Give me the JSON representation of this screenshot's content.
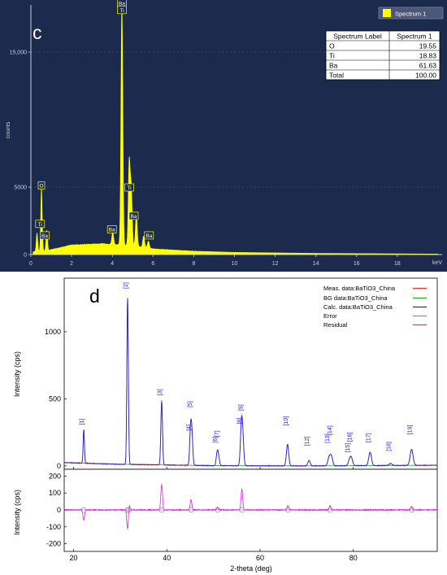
{
  "panel_c": {
    "letter": "c",
    "legend_label": "Spectrum 1",
    "ylabel": "counts",
    "xunit": "keV",
    "table": {
      "headers": [
        "Spectrum Label",
        "Spectrum 1"
      ],
      "rows": [
        [
          "O",
          "19.55"
        ],
        [
          "Ti",
          "18.83"
        ],
        [
          "Ba",
          "61.63"
        ],
        [
          "Total",
          "100.00"
        ]
      ]
    },
    "colors": {
      "background": "#1c2b4d",
      "spectrum": "#ffff00",
      "axis": "#c8cede"
    }
  },
  "panel_d": {
    "letter": "d",
    "xlabel": "2-theta (deg)",
    "ylabel_top": "Intensity (cps)",
    "ylabel_bottom": "Intensity (cps)",
    "legend": [
      {
        "label": "Meas. data:BaTiO3_China",
        "color": "#e8382e"
      },
      {
        "label": "BG data:BaTiO3_China",
        "color": "#2ea02e"
      },
      {
        "label": "Calc. data:BaTiO3_China",
        "color": "#2424d8"
      },
      {
        "label": "Error",
        "color": "#909090"
      },
      {
        "label": "Residual",
        "color": "#e020e0"
      }
    ]
  },
  "chart_data": [
    {
      "type": "area",
      "xlim": [
        0,
        20
      ],
      "ylim": [
        0,
        18500
      ],
      "xticks": [
        0,
        2,
        4,
        6,
        8,
        10,
        12,
        14,
        16,
        18
      ],
      "yticks": [
        0,
        5000,
        15000
      ],
      "ytick_labels": [
        "0",
        "5000",
        "15,000"
      ],
      "xlabel": "keV",
      "ylabel": "counts",
      "series": [
        {
          "name": "Spectrum 1",
          "color": "#ffff00"
        }
      ],
      "peaks": [
        {
          "x": 0.3,
          "y": 1350
        },
        {
          "x": 0.52,
          "y": 4700
        },
        {
          "x": 0.78,
          "y": 1500
        },
        {
          "x": 4.02,
          "y": 900
        },
        {
          "x": 4.47,
          "y": 17900
        },
        {
          "x": 4.83,
          "y": 6200
        },
        {
          "x": 4.93,
          "y": 4100
        },
        {
          "x": 5.18,
          "y": 2300
        },
        {
          "x": 5.54,
          "y": 850
        },
        {
          "x": 5.77,
          "y": 520
        }
      ],
      "continuum": [
        [
          0.85,
          320
        ],
        [
          2,
          700
        ],
        [
          3.5,
          800
        ],
        [
          5,
          650
        ],
        [
          6,
          420
        ],
        [
          8,
          250
        ],
        [
          10,
          160
        ],
        [
          14,
          90
        ],
        [
          20,
          40
        ]
      ],
      "peak_labels": [
        {
          "text": "Ba",
          "x": 4.47,
          "y": 18350
        },
        {
          "text": "Ti",
          "x": 4.47,
          "y": 17850
        },
        {
          "text": "O",
          "x": 0.52,
          "y": 4850
        },
        {
          "text": "Ti",
          "x": 4.83,
          "y": 4700
        },
        {
          "text": "Ti",
          "x": 0.45,
          "y": 2000
        },
        {
          "text": "Ba",
          "x": 5.05,
          "y": 2600
        },
        {
          "text": "Ba",
          "x": 0.68,
          "y": 1150
        },
        {
          "text": "Ba",
          "x": 3.98,
          "y": 1600
        },
        {
          "text": "Ba",
          "x": 5.8,
          "y": 1150
        }
      ],
      "table": {
        "O": 19.55,
        "Ti": 18.83,
        "Ba": 61.63,
        "Total": 100.0
      }
    },
    {
      "type": "line",
      "xlim": [
        18,
        98
      ],
      "xticks": [
        20,
        40,
        60,
        80
      ],
      "xlabel": "2-theta (deg)",
      "top": {
        "ylim": [
          -25,
          1400
        ],
        "yticks": [
          0,
          500,
          1000
        ],
        "ylabel": "Intensity (cps)",
        "background": [
          [
            18,
            25
          ],
          [
            30,
            12
          ],
          [
            50,
            2
          ],
          [
            70,
            0
          ],
          [
            98,
            5
          ]
        ],
        "reflections": [
          {
            "label": "[1]",
            "x": 22.2,
            "height": 250,
            "label_y": 330
          },
          {
            "label": "[2]",
            "x": 31.6,
            "height": 1240,
            "label_y": 1345
          },
          {
            "label": "[3]",
            "x": 38.9,
            "height": 470,
            "label_y": 550
          },
          {
            "label": "[4]",
            "x": 45.1,
            "height": 260,
            "label_y": 285
          },
          {
            "label": "[5]",
            "x": 45.4,
            "height": 200,
            "label_y": 460
          },
          {
            "label": "[6]",
            "x": 50.8,
            "height": 90,
            "label_y": 195
          },
          {
            "label": "[7]",
            "x": 51.1,
            "height": 60,
            "label_y": 240
          },
          {
            "label": "[8]",
            "x": 56.0,
            "height": 280,
            "label_y": 335
          },
          {
            "label": "[9]",
            "x": 56.3,
            "height": 180,
            "label_y": 435
          },
          {
            "label": "[10]",
            "x": 65.9,
            "height": 160,
            "label_y": 335
          },
          {
            "label": "[12]",
            "x": 70.5,
            "height": 40,
            "label_y": 185
          },
          {
            "label": "[13]",
            "x": 74.8,
            "height": 60,
            "label_y": 205
          },
          {
            "label": "[14]",
            "x": 75.3,
            "height": 70,
            "label_y": 265
          },
          {
            "label": "[15]",
            "x": 79.2,
            "height": 40,
            "label_y": 135
          },
          {
            "label": "[16]",
            "x": 79.6,
            "height": 50,
            "label_y": 215
          },
          {
            "label": "[17]",
            "x": 83.6,
            "height": 100,
            "label_y": 210
          },
          {
            "label": "[18]",
            "x": 88.0,
            "height": 15,
            "label_y": 145
          },
          {
            "label": "[19]",
            "x": 92.5,
            "height": 120,
            "label_y": 270
          }
        ]
      },
      "bottom": {
        "ylim": [
          -245,
          240
        ],
        "yticks": [
          -200,
          -100,
          0,
          100,
          200
        ],
        "ylabel": "Intensity (cps)",
        "residual_features": [
          {
            "x": 22.2,
            "value": -60
          },
          {
            "x": 31.6,
            "value": -120
          },
          {
            "x": 31.9,
            "value": 40
          },
          {
            "x": 38.9,
            "value": 150
          },
          {
            "x": 45.2,
            "value": 60
          },
          {
            "x": 50.9,
            "value": 15
          },
          {
            "x": 56.1,
            "value": 120
          },
          {
            "x": 66.0,
            "value": 25
          },
          {
            "x": 75.0,
            "value": 25
          },
          {
            "x": 92.5,
            "value": 20
          }
        ]
      }
    }
  ]
}
